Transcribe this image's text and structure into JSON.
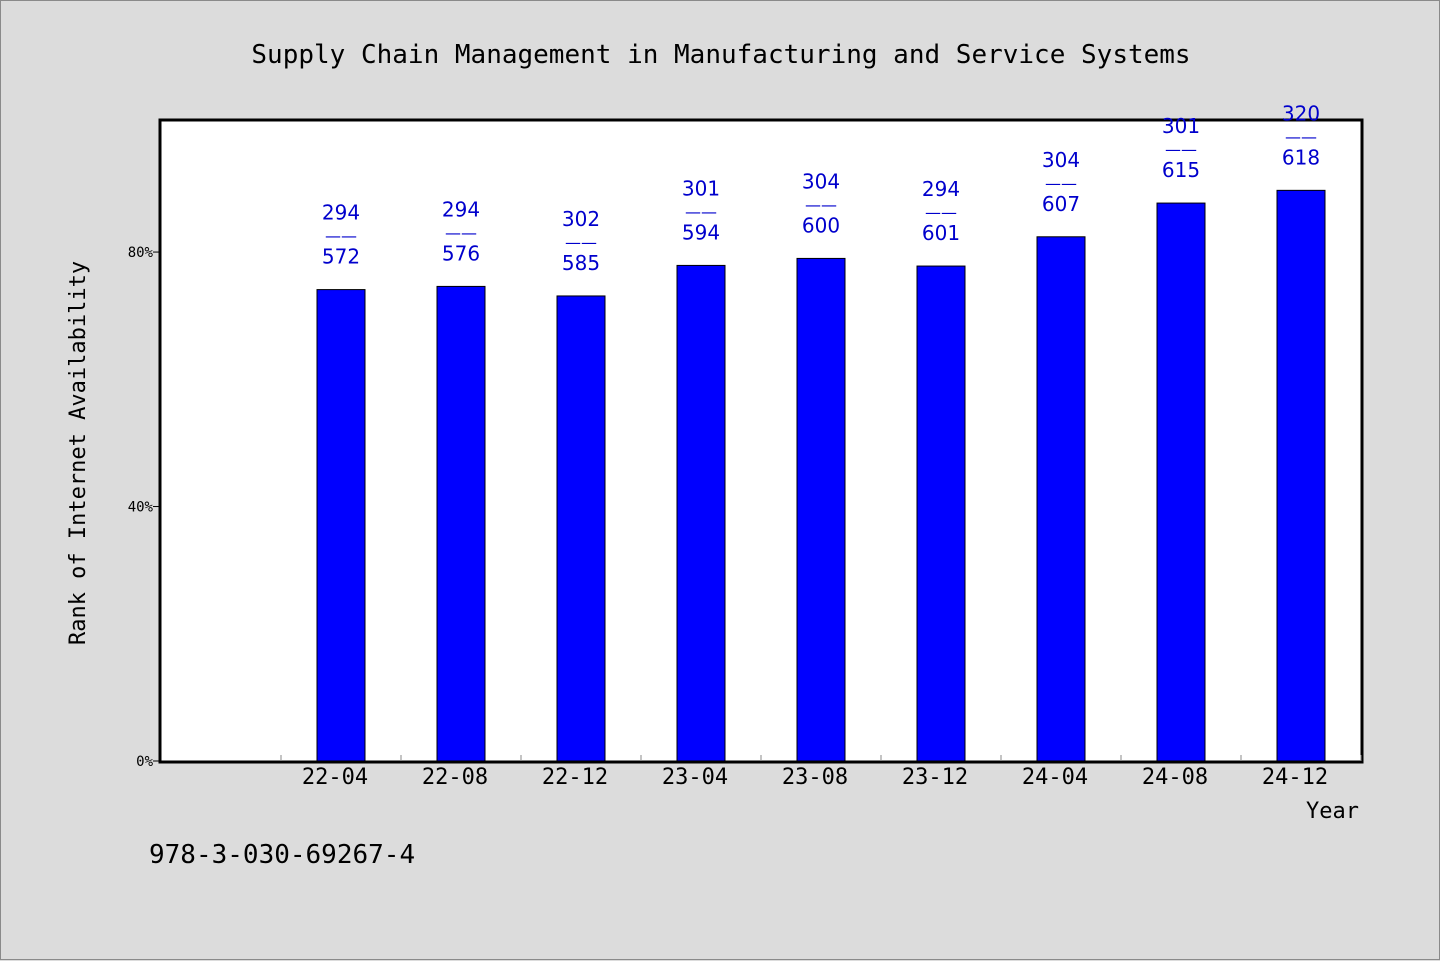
{
  "chart_data": {
    "type": "bar",
    "title": "Supply Chain Management in Manufacturing and Service Systems",
    "xlabel": "Year",
    "ylabel": "Rank of Internet Availability",
    "categories": [
      "22-04",
      "22-08",
      "22-12",
      "23-04",
      "23-08",
      "23-12",
      "24-04",
      "24-08",
      "24-12"
    ],
    "values": [
      74.1,
      74.6,
      73.1,
      77.9,
      79.0,
      77.8,
      82.4,
      87.7,
      89.7
    ],
    "data_labels": [
      {
        "top": "294",
        "sep": "——",
        "bottom": "572"
      },
      {
        "top": "294",
        "sep": "——",
        "bottom": "576"
      },
      {
        "top": "302",
        "sep": "——",
        "bottom": "585"
      },
      {
        "top": "301",
        "sep": "——",
        "bottom": "594"
      },
      {
        "top": "304",
        "sep": "——",
        "bottom": "600"
      },
      {
        "top": "294",
        "sep": "——",
        "bottom": "601"
      },
      {
        "top": "304",
        "sep": "——",
        "bottom": "607"
      },
      {
        "top": "301",
        "sep": "——",
        "bottom": "615"
      },
      {
        "top": "320",
        "sep": "——",
        "bottom": "618"
      }
    ],
    "y_ticks": [
      {
        "value": 0,
        "label": "0%"
      },
      {
        "value": 40,
        "label": "40%"
      },
      {
        "value": 80,
        "label": "80%"
      }
    ],
    "ylim": [
      0,
      100.6
    ],
    "grid": false,
    "legend": "none",
    "colors": {
      "bar": "#0000ff",
      "label": "#0000cc",
      "background": "#dcdcdc",
      "plot": "#ffffff"
    }
  },
  "footer_text": "978-3-030-69267-4"
}
